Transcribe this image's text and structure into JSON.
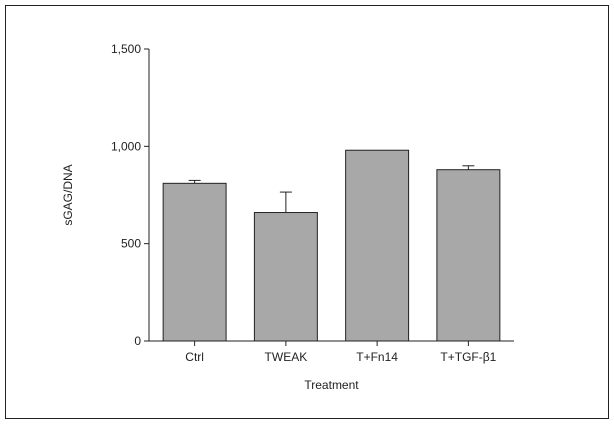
{
  "chart_data": {
    "type": "bar",
    "categories": [
      "Ctrl",
      "TWEAK",
      "T+Fn14",
      "T+TGF-β1"
    ],
    "values": [
      810,
      660,
      980,
      880
    ],
    "errors": [
      15,
      105,
      0,
      20
    ],
    "xlabel": "Treatment",
    "ylabel": "sGAG/DNA",
    "ylim": [
      0,
      1500
    ],
    "yticks": [
      0,
      500,
      1000,
      1500
    ],
    "ytick_labels": [
      "0",
      "500",
      "1,000",
      "1,500"
    ],
    "grid": false,
    "bar_color": "#a8a8a8",
    "edge_color": "#222222"
  }
}
